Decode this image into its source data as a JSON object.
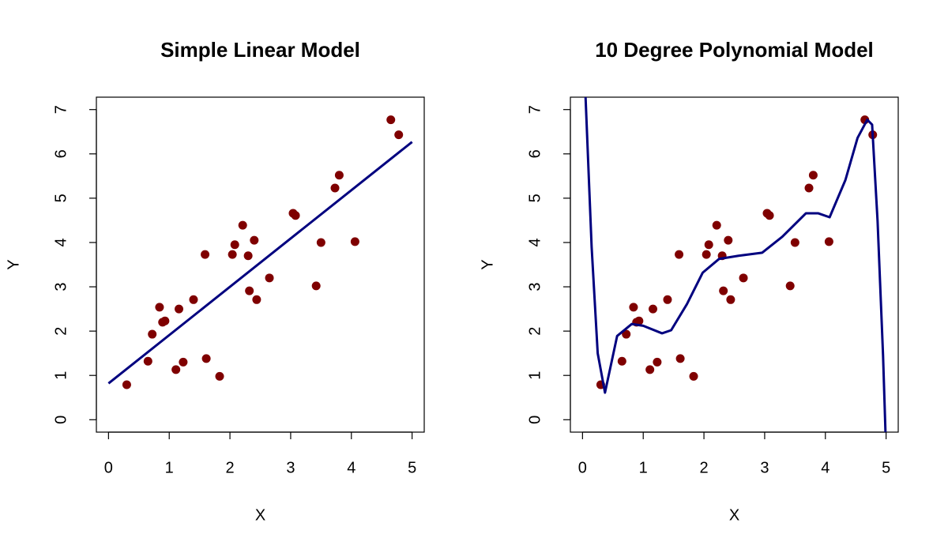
{
  "chart_data": [
    {
      "type": "scatter",
      "title": "Simple Linear Model",
      "x_label": "X",
      "y_label": "Y",
      "xlim": [
        -0.2,
        5.2
      ],
      "ylim": [
        -0.28,
        7.28
      ],
      "xticks": [
        0,
        1,
        2,
        3,
        4,
        5
      ],
      "yticks": [
        0,
        1,
        2,
        3,
        4,
        5,
        6,
        7
      ],
      "series": [
        {
          "mode": "points",
          "color": "#7f0000",
          "x": [
            0.3,
            0.65,
            0.72,
            0.84,
            0.89,
            0.93,
            1.11,
            1.16,
            1.23,
            1.4,
            1.59,
            1.61,
            1.83,
            2.04,
            2.08,
            2.21,
            2.3,
            2.32,
            2.4,
            2.44,
            2.65,
            3.04,
            3.08,
            3.42,
            3.5,
            3.73,
            3.8,
            4.06,
            4.65,
            4.78
          ],
          "values": [
            0.79,
            1.32,
            1.93,
            2.54,
            2.2,
            2.23,
            1.13,
            2.5,
            1.3,
            2.71,
            3.73,
            1.38,
            0.98,
            3.73,
            3.95,
            4.39,
            3.7,
            2.91,
            4.05,
            2.71,
            3.2,
            4.66,
            4.61,
            3.02,
            4.0,
            5.23,
            5.52,
            4.02,
            6.77,
            6.43
          ]
        },
        {
          "mode": "line",
          "color": "#00007f",
          "x": [
            0,
            5
          ],
          "values": [
            0.82,
            6.27
          ]
        }
      ]
    },
    {
      "type": "scatter",
      "title": "10 Degree Polynomial Model",
      "x_label": "X",
      "y_label": "Y",
      "xlim": [
        -0.2,
        5.2
      ],
      "ylim": [
        -0.28,
        7.28
      ],
      "xticks": [
        0,
        1,
        2,
        3,
        4,
        5
      ],
      "yticks": [
        0,
        1,
        2,
        3,
        4,
        5,
        6,
        7
      ],
      "series": [
        {
          "mode": "points",
          "color": "#7f0000",
          "x": [
            0.3,
            0.65,
            0.72,
            0.84,
            0.89,
            0.93,
            1.11,
            1.16,
            1.23,
            1.4,
            1.59,
            1.61,
            1.83,
            2.04,
            2.08,
            2.21,
            2.3,
            2.32,
            2.4,
            2.44,
            2.65,
            3.04,
            3.08,
            3.42,
            3.5,
            3.73,
            3.8,
            4.06,
            4.65,
            4.78
          ],
          "values": [
            0.79,
            1.32,
            1.93,
            2.54,
            2.2,
            2.23,
            1.13,
            2.5,
            1.3,
            2.71,
            3.73,
            1.38,
            0.98,
            3.73,
            3.95,
            4.39,
            3.7,
            2.91,
            4.05,
            2.71,
            3.2,
            4.66,
            4.61,
            3.02,
            4.0,
            5.23,
            5.52,
            4.02,
            6.77,
            6.43
          ]
        },
        {
          "mode": "line",
          "color": "#00007f",
          "x": [
            0.05,
            0.15,
            0.25,
            0.37,
            0.57,
            0.81,
            1.0,
            1.31,
            1.46,
            1.72,
            1.98,
            2.25,
            2.57,
            2.96,
            3.29,
            3.68,
            3.88,
            4.07,
            4.33,
            4.53,
            4.69,
            4.77,
            4.86,
            4.95,
            4.99
          ],
          "values": [
            7.28,
            3.9,
            1.5,
            0.61,
            1.89,
            2.16,
            2.12,
            1.95,
            2.02,
            2.61,
            3.32,
            3.63,
            3.7,
            3.77,
            4.13,
            4.66,
            4.66,
            4.57,
            5.41,
            6.36,
            6.77,
            6.66,
            4.48,
            1.45,
            -0.28
          ]
        }
      ]
    }
  ]
}
